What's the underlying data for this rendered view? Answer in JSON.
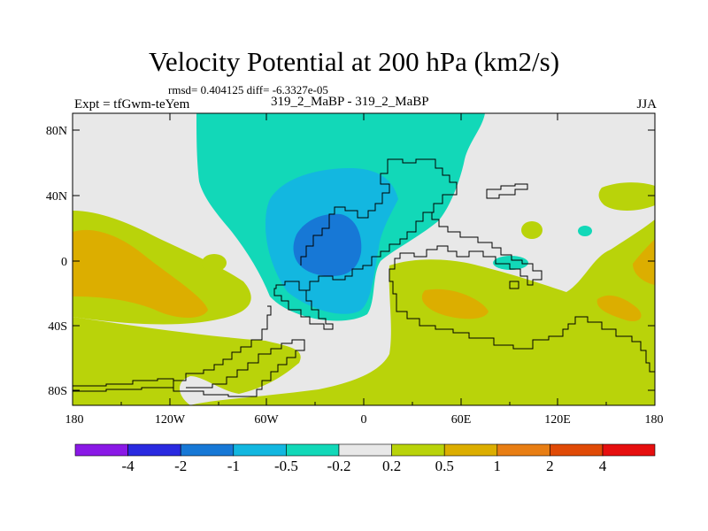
{
  "title": "Velocity Potential at 200 hPa (km2/s)",
  "stats": "rmsd= 0.404125 diff= -6.3327e-05",
  "experiment": "Expt = tfGwm-teYem",
  "subtitle": "319_2_MaBP - 319_2_MaBP",
  "season": "JJA",
  "lat_labels": [
    "80N",
    "40N",
    "0",
    "40S",
    "80S"
  ],
  "lon_labels": [
    "180",
    "120W",
    "60W",
    "0",
    "60E",
    "120E",
    "180"
  ],
  "colorbar": {
    "colors": [
      "#8a19e6",
      "#2a2ae0",
      "#1778d6",
      "#13b7e0",
      "#12d8b8",
      "#e8e8e8",
      "#b9d30a",
      "#dcae00",
      "#e87e14",
      "#e04a06",
      "#e60f0f"
    ],
    "labels": [
      "-4",
      "-2",
      "-1",
      "-0.5",
      "-0.2",
      "0.2",
      "0.5",
      "1",
      "2",
      "4"
    ]
  },
  "map_colors": {
    "neutral": "#e8e8e8",
    "positive_low": "#b9d30a",
    "positive_mid": "#dcae00",
    "negative_low": "#12d8b8",
    "negative_mid": "#13b7e0",
    "negative_high": "#1778d6",
    "coast": "#000000"
  }
}
